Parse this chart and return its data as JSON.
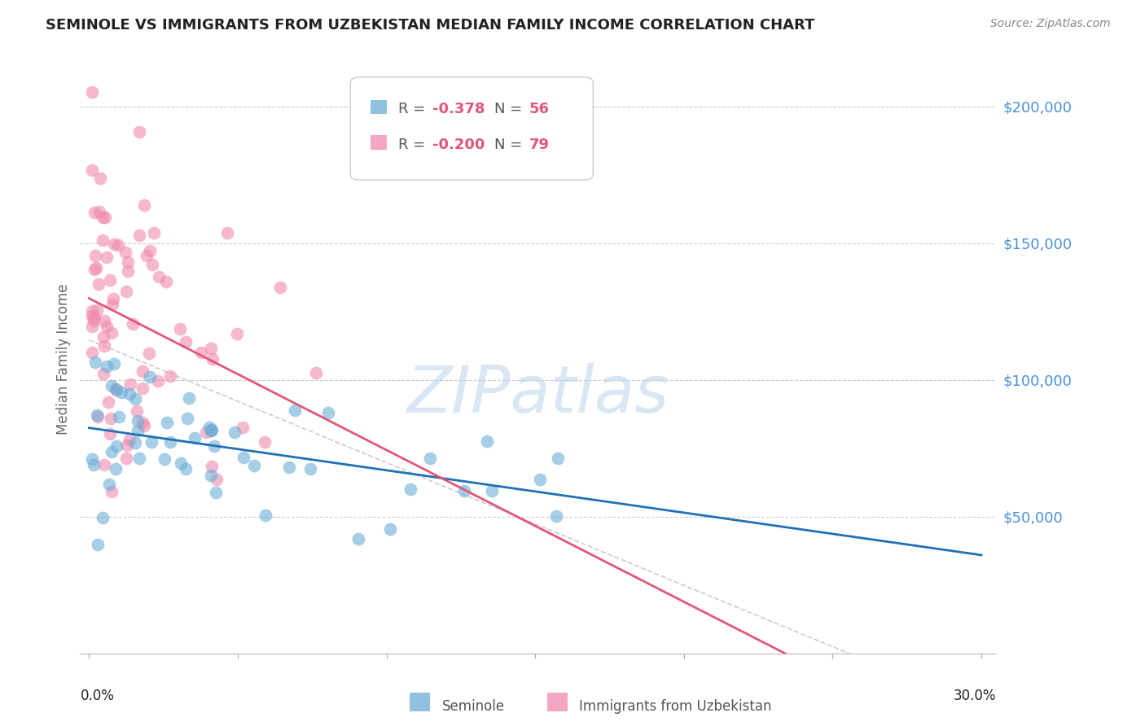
{
  "title": "SEMINOLE VS IMMIGRANTS FROM UZBEKISTAN MEDIAN FAMILY INCOME CORRELATION CHART",
  "source": "Source: ZipAtlas.com",
  "ylabel": "Median Family Income",
  "xlim": [
    0.0,
    0.3
  ],
  "ylim": [
    0,
    210000
  ],
  "legend_r1": "-0.378",
  "legend_n1": "56",
  "legend_r2": "-0.200",
  "legend_n2": "79",
  "seminole_color": "#6baed6",
  "uzbek_color": "#f08ab0",
  "blue_line_color": "#2171b5",
  "pink_line_color": "#e05878",
  "dash_line_color": "#cccccc",
  "watermark_color": "#b8d4ea",
  "ytick_color": "#4a90d9",
  "title_color": "#222222",
  "source_color": "#888888",
  "ylabel_color": "#666666"
}
